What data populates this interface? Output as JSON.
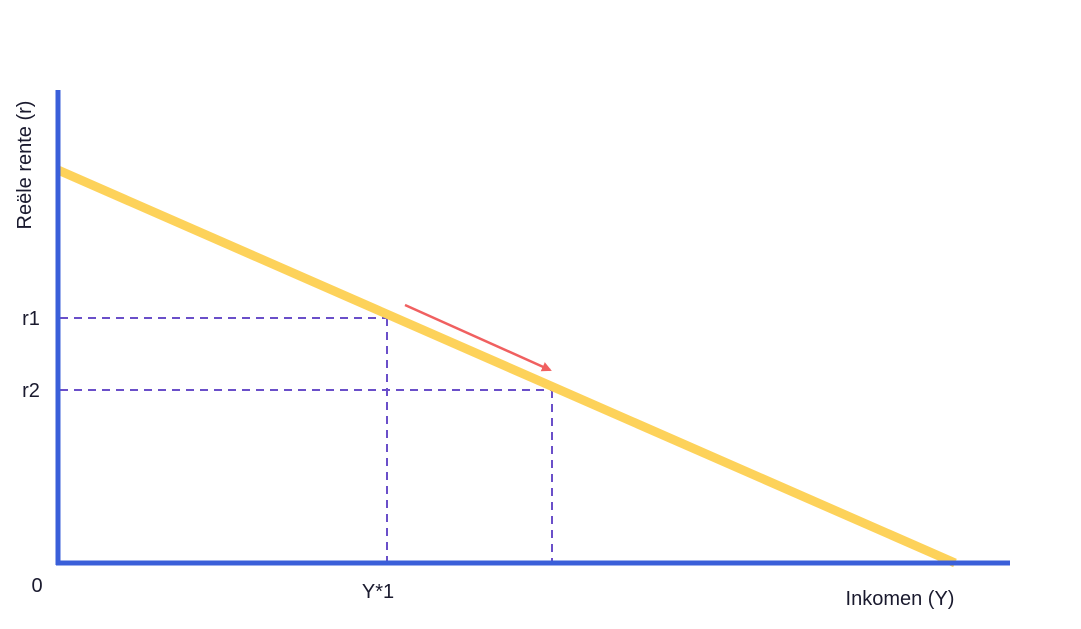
{
  "axes": {
    "y_label": "Reële rente (r)",
    "x_label": "Inkomen (Y)",
    "origin": "0"
  },
  "levels": {
    "r1": "r1",
    "r2": "r2",
    "y1": "Y*1"
  }
}
